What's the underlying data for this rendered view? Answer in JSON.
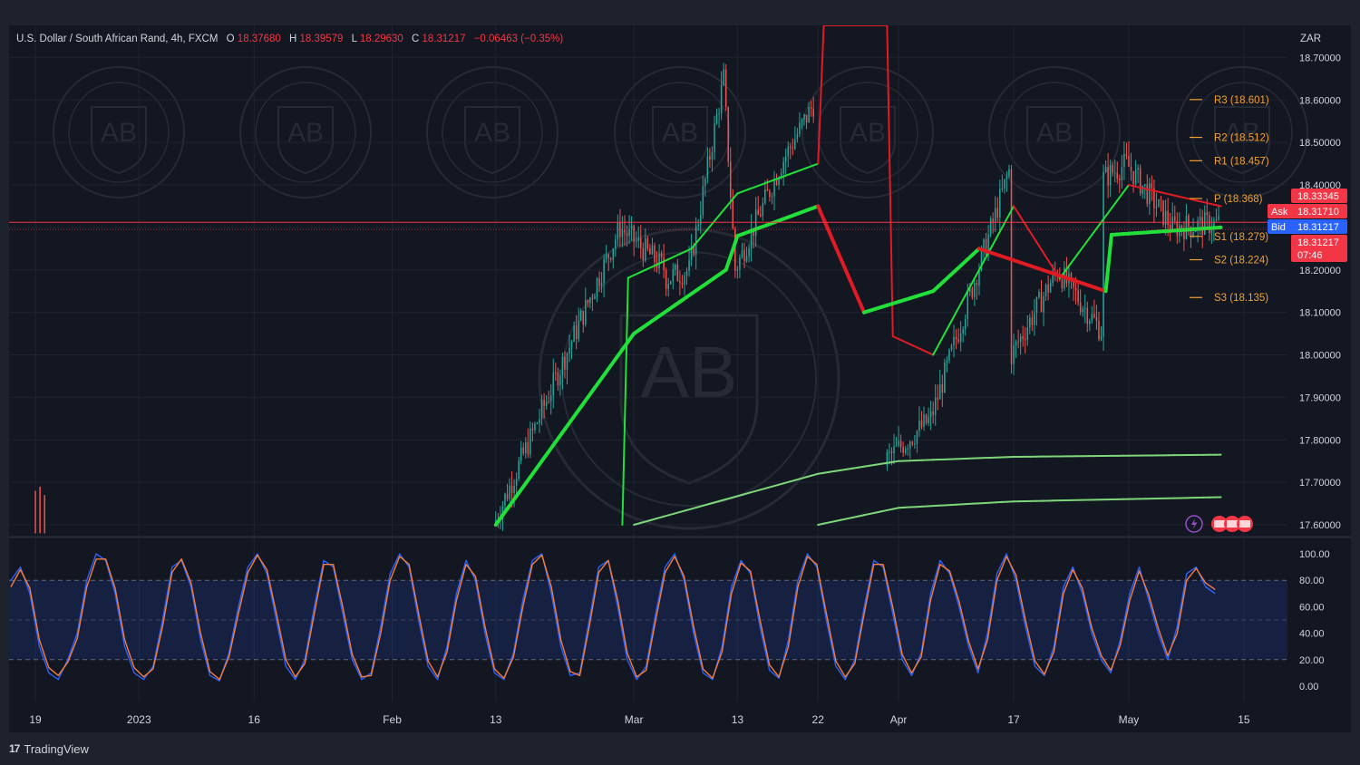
{
  "header": {
    "symbol": "U.S. Dollar / South African Rand, 4h, FXCM",
    "o_label": "O",
    "o_value": "18.37680",
    "h_label": "H",
    "h_value": "18.39579",
    "l_label": "L",
    "l_value": "18.29630",
    "c_label": "C",
    "c_value": "18.31217",
    "change": "−0.06463 (−0.35%)"
  },
  "currency": "ZAR",
  "colors": {
    "background": "#131722",
    "up": "#26a69a",
    "down": "#ef5350",
    "ma_bull": "#22e03a",
    "ma_bear": "#e01b24",
    "pivot": "#f0a030",
    "price_line": "#f23645",
    "bid": "#2962ff",
    "stoch_k": "#2962ff",
    "stoch_d": "#f57c3b"
  },
  "price_labels": {
    "high": "18.33345",
    "ask_tag": "Ask",
    "ask": "18.31710",
    "bid_tag": "Bid",
    "bid": "18.31217",
    "last": "18.31217",
    "countdown": "07:46"
  },
  "watermark_text": "AB",
  "footer": {
    "brand": "TradingView"
  },
  "chart_data": [
    {
      "type": "candlestick",
      "title": "U.S. Dollar / South African Rand, 4h, FXCM",
      "ylim": [
        17.6,
        18.75
      ],
      "y_ticks": [
        "18.70000",
        "18.60000",
        "18.50000",
        "18.40000",
        "18.30000",
        "18.20000",
        "18.10000",
        "18.00000",
        "17.90000",
        "17.80000",
        "17.70000",
        "17.60000"
      ],
      "x_ticks": [
        "19",
        "2023",
        "16",
        "Feb",
        "13",
        "Mar",
        "13",
        "22",
        "Apr",
        "17",
        "May",
        "15"
      ],
      "price_path": [
        [
          "13",
          17.6
        ],
        [
          "Feb+20",
          18.3
        ],
        [
          "Feb+24",
          18.2
        ],
        [
          "Mar-3",
          18.55
        ],
        [
          "Mar",
          18.15
        ],
        [
          "Mar+5",
          18.2
        ],
        [
          "Mar+8",
          18.65
        ],
        [
          "13",
          18.2
        ],
        [
          "22-3",
          18.45
        ],
        [
          "22",
          18.6
        ],
        [
          "25",
          18.3
        ],
        [
          "28",
          18.1
        ],
        [
          "Apr-1",
          17.75
        ],
        [
          "Apr+3",
          17.85
        ],
        [
          "Apr+10",
          18.45
        ],
        [
          "17-3",
          18.15
        ],
        [
          "17",
          18.0
        ],
        [
          "17+4",
          18.2
        ],
        [
          "17+8",
          18.05
        ],
        [
          "May-8",
          18.35
        ],
        [
          "May-3",
          18.4
        ],
        [
          "May",
          18.45
        ],
        [
          "May+4",
          18.3
        ],
        [
          "May+8",
          18.31
        ]
      ],
      "pivots": [
        {
          "name": "R3",
          "label": "R3 (18.601)",
          "value": 18.601
        },
        {
          "name": "R2",
          "label": "R2 (18.512)",
          "value": 18.512
        },
        {
          "name": "R1",
          "label": "R1 (18.457)",
          "value": 18.457
        },
        {
          "name": "P",
          "label": "P (18.368)",
          "value": 18.368
        },
        {
          "name": "S1",
          "label": "S1 (18.279)",
          "value": 18.279
        },
        {
          "name": "S2",
          "label": "S2 (18.224)",
          "value": 18.224
        },
        {
          "name": "S3",
          "label": "S3 (18.135)",
          "value": 18.135
        }
      ],
      "last_price": 18.31217,
      "moving_averages": {
        "ma1": [
          [
            "13",
            17.6
          ],
          [
            "Mar",
            18.05
          ],
          [
            "Mar+8",
            18.2
          ],
          [
            "13",
            18.28
          ],
          [
            "22",
            18.35
          ],
          [
            "Apr-3",
            18.1
          ],
          [
            "Apr+3",
            18.15
          ],
          [
            "17-3",
            18.25
          ],
          [
            "17+8",
            18.15
          ],
          [
            "May-3",
            18.28
          ],
          [
            "May+8",
            18.3
          ]
        ],
        "ma2": [
          [
            "Feb+20",
            17.6
          ],
          [
            "Mar-3",
            18.15
          ],
          [
            "Mar+5",
            18.25
          ],
          [
            "13",
            18.38
          ],
          [
            "22",
            18.45
          ],
          [
            "28",
            18.25
          ],
          [
            "Apr-1",
            18.05
          ],
          [
            "Apr+3",
            18.0
          ],
          [
            "Apr+10",
            18.35
          ],
          [
            "17+4",
            18.18
          ],
          [
            "May",
            18.4
          ],
          [
            "May+8",
            18.35
          ]
        ],
        "ma200": [
          [
            "Mar",
            17.6
          ],
          [
            "22",
            17.72
          ],
          [
            "Apr",
            17.75
          ],
          [
            "17",
            17.76
          ],
          [
            "May+8",
            17.765
          ]
        ],
        "ma400": [
          [
            "22",
            17.6
          ],
          [
            "Apr",
            17.64
          ],
          [
            "17",
            17.655
          ],
          [
            "May+8",
            17.665
          ]
        ]
      }
    },
    {
      "type": "line",
      "title": "",
      "ylim": [
        0,
        100
      ],
      "y_ticks": [
        "100.00",
        "80.00",
        "60.00",
        "40.00",
        "20.00",
        "0.00"
      ],
      "bands": {
        "upper": 80,
        "middle": 50,
        "lower": 20
      },
      "series": [
        {
          "values": [
            80,
            90,
            70,
            30,
            10,
            5,
            20,
            40,
            80,
            100,
            95,
            70,
            30,
            10,
            5,
            15,
            50,
            90,
            95,
            75,
            35,
            8,
            4,
            25,
            60,
            90,
            100,
            85,
            50,
            15,
            5,
            20,
            60,
            95,
            90,
            55,
            20,
            5,
            10,
            45,
            85,
            100,
            90,
            50,
            15,
            5,
            30,
            70,
            95,
            80,
            40,
            10,
            5,
            25,
            65,
            95,
            100,
            70,
            30,
            8,
            10,
            50,
            90,
            95,
            60,
            20,
            5,
            15,
            55,
            90,
            100,
            80,
            40,
            10,
            5,
            30,
            75,
            95,
            85,
            45,
            12,
            6,
            35,
            80,
            100,
            90,
            50,
            15,
            5,
            20,
            60,
            95,
            90,
            55,
            20,
            8,
            25,
            70,
            95,
            85,
            60,
            30,
            10,
            40,
            85,
            100,
            80,
            45,
            15,
            8,
            30,
            75,
            90,
            70,
            40,
            20,
            10,
            35,
            70,
            90,
            65,
            40,
            20,
            45,
            85,
            90,
            75,
            70
          ]
        },
        {
          "values": [
            75,
            88,
            74,
            35,
            14,
            8,
            18,
            36,
            75,
            96,
            96,
            74,
            35,
            14,
            7,
            13,
            45,
            86,
            96,
            78,
            40,
            11,
            5,
            22,
            55,
            86,
            99,
            88,
            55,
            20,
            7,
            17,
            55,
            92,
            92,
            60,
            24,
            7,
            8,
            40,
            80,
            98,
            92,
            55,
            19,
            7,
            26,
            65,
            92,
            83,
            45,
            13,
            6,
            22,
            60,
            92,
            99,
            75,
            35,
            11,
            8,
            45,
            86,
            95,
            65,
            25,
            7,
            12,
            50,
            86,
            98,
            83,
            45,
            13,
            6,
            26,
            70,
            93,
            87,
            50,
            16,
            7,
            30,
            75,
            98,
            92,
            55,
            19,
            7,
            17,
            55,
            92,
            92,
            60,
            24,
            10,
            22,
            65,
            92,
            87,
            64,
            34,
            13,
            35,
            80,
            98,
            84,
            50,
            19,
            9,
            26,
            70,
            88,
            74,
            44,
            23,
            12,
            31,
            65,
            87,
            69,
            44,
            23,
            40,
            80,
            89,
            78,
            73
          ]
        }
      ]
    }
  ]
}
